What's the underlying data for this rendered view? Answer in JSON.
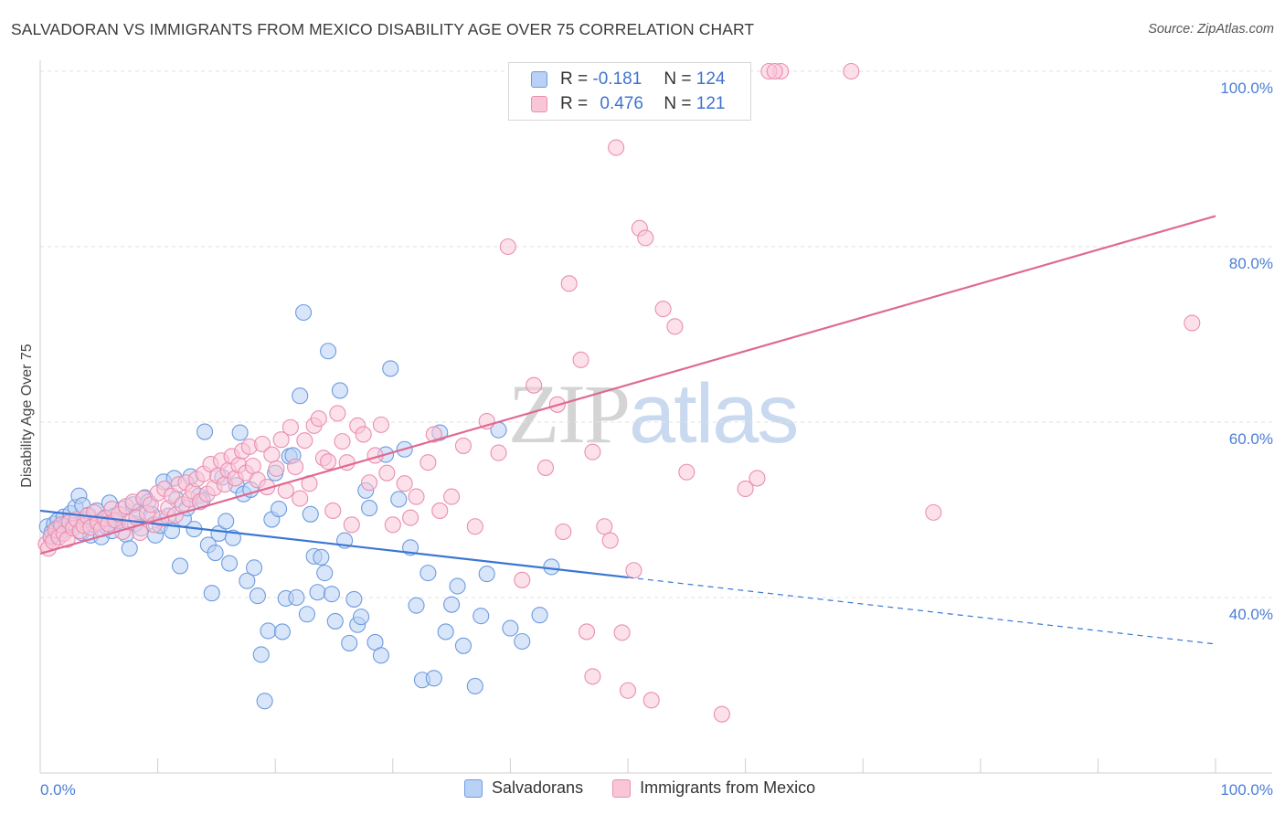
{
  "title": "SALVADORAN VS IMMIGRANTS FROM MEXICO DISABILITY AGE OVER 75 CORRELATION CHART",
  "source": "Source: ZipAtlas.com",
  "watermark": {
    "zip": "ZIP",
    "atlas": "atlas"
  },
  "legend": {
    "r_label": "R =",
    "n_label": "N =",
    "rows": [
      {
        "r": "-0.181",
        "n": "124",
        "fill": "#b9d1f4",
        "stroke": "#6d9be0"
      },
      {
        "r": "0.476",
        "n": "121",
        "fill": "#f9c6d8",
        "stroke": "#ea8fb0"
      }
    ]
  },
  "bottom_legend": [
    {
      "label": "Salvadorans",
      "fill": "#b9d1f4",
      "stroke": "#6d9be0"
    },
    {
      "label": "Immigrants from Mexico",
      "fill": "#f9c6d8",
      "stroke": "#ea8fb0"
    }
  ],
  "chart_data": {
    "type": "scatter",
    "title": "SALVADORAN VS IMMIGRANTS FROM MEXICO DISABILITY AGE OVER 75 CORRELATION CHART",
    "xlabel": "",
    "ylabel": "Disability Age Over 75",
    "xlim": [
      0,
      100
    ],
    "ylim": [
      18,
      102
    ],
    "x_tick_labels": [
      "0.0%",
      "100.0%"
    ],
    "y_tick_values": [
      40,
      60,
      80,
      100
    ],
    "y_tick_labels": [
      "40.0%",
      "60.0%",
      "80.0%",
      "100.0%"
    ],
    "grid": "horizontal dashed",
    "legend_position": "top-center",
    "series": [
      {
        "name": "Salvadorans",
        "color": "#6d9be0",
        "fill": "#b9d1f4",
        "trend": {
          "x": [
            0,
            50
          ],
          "y": [
            49.9,
            42.3
          ],
          "dashed_to": {
            "x": 100,
            "y": 34.7
          },
          "color": "#3a76d4"
        },
        "points": [
          [
            0.6,
            48.1
          ],
          [
            0.9,
            46.8
          ],
          [
            1.0,
            47.5
          ],
          [
            1.2,
            48.4
          ],
          [
            1.4,
            47.9
          ],
          [
            1.5,
            48.8
          ],
          [
            1.6,
            47.3
          ],
          [
            1.8,
            48.0
          ],
          [
            2.0,
            49.2
          ],
          [
            2.1,
            47.7
          ],
          [
            2.3,
            48.5
          ],
          [
            2.6,
            49.6
          ],
          [
            2.8,
            48.2
          ],
          [
            3.0,
            50.3
          ],
          [
            3.3,
            51.6
          ],
          [
            3.5,
            47.4
          ],
          [
            3.6,
            50.5
          ],
          [
            3.8,
            48.9
          ],
          [
            4.1,
            49.4
          ],
          [
            4.3,
            47.1
          ],
          [
            4.6,
            48.3
          ],
          [
            4.8,
            49.9
          ],
          [
            5.0,
            48.6
          ],
          [
            5.2,
            46.9
          ],
          [
            5.5,
            49.1
          ],
          [
            5.7,
            48.0
          ],
          [
            5.9,
            50.8
          ],
          [
            6.1,
            47.6
          ],
          [
            6.3,
            49.3
          ],
          [
            6.6,
            48.7
          ],
          [
            7.0,
            50.1
          ],
          [
            7.3,
            47.2
          ],
          [
            7.6,
            45.6
          ],
          [
            7.9,
            50.6
          ],
          [
            8.1,
            48.4
          ],
          [
            8.4,
            49.8
          ],
          [
            8.6,
            47.9
          ],
          [
            8.9,
            51.4
          ],
          [
            9.2,
            50.9
          ],
          [
            9.5,
            49.5
          ],
          [
            9.8,
            47.1
          ],
          [
            10.2,
            48.2
          ],
          [
            10.5,
            53.2
          ],
          [
            10.9,
            49.3
          ],
          [
            11.2,
            47.6
          ],
          [
            11.4,
            53.6
          ],
          [
            11.6,
            51.2
          ],
          [
            11.9,
            43.6
          ],
          [
            12.2,
            49.0
          ],
          [
            12.5,
            50.2
          ],
          [
            12.8,
            53.8
          ],
          [
            13.1,
            47.8
          ],
          [
            13.5,
            51.6
          ],
          [
            13.8,
            51.1
          ],
          [
            14.0,
            58.9
          ],
          [
            14.3,
            46.0
          ],
          [
            14.6,
            40.5
          ],
          [
            14.9,
            45.1
          ],
          [
            15.2,
            47.3
          ],
          [
            15.5,
            53.7
          ],
          [
            15.8,
            48.7
          ],
          [
            16.1,
            43.9
          ],
          [
            16.4,
            46.8
          ],
          [
            16.7,
            52.8
          ],
          [
            17.0,
            58.8
          ],
          [
            17.3,
            51.8
          ],
          [
            17.6,
            41.9
          ],
          [
            17.9,
            52.3
          ],
          [
            18.2,
            43.4
          ],
          [
            18.5,
            40.2
          ],
          [
            18.8,
            33.5
          ],
          [
            19.1,
            28.2
          ],
          [
            19.4,
            36.2
          ],
          [
            19.7,
            48.9
          ],
          [
            20.0,
            54.2
          ],
          [
            20.3,
            50.1
          ],
          [
            20.6,
            36.1
          ],
          [
            20.9,
            39.9
          ],
          [
            21.2,
            56.1
          ],
          [
            21.5,
            56.2
          ],
          [
            21.8,
            40.0
          ],
          [
            22.1,
            63.0
          ],
          [
            22.4,
            72.5
          ],
          [
            22.7,
            38.1
          ],
          [
            23.0,
            49.5
          ],
          [
            23.3,
            44.7
          ],
          [
            23.6,
            40.6
          ],
          [
            23.9,
            44.6
          ],
          [
            24.2,
            42.8
          ],
          [
            24.5,
            68.1
          ],
          [
            24.8,
            40.4
          ],
          [
            25.1,
            37.3
          ],
          [
            25.5,
            63.6
          ],
          [
            25.9,
            46.5
          ],
          [
            26.3,
            34.8
          ],
          [
            26.7,
            39.8
          ],
          [
            27.0,
            36.9
          ],
          [
            27.3,
            37.8
          ],
          [
            27.7,
            52.2
          ],
          [
            28.0,
            50.2
          ],
          [
            28.5,
            34.9
          ],
          [
            29.0,
            33.4
          ],
          [
            29.4,
            56.3
          ],
          [
            29.8,
            66.1
          ],
          [
            30.5,
            51.2
          ],
          [
            31.0,
            56.9
          ],
          [
            31.5,
            45.7
          ],
          [
            32.0,
            39.1
          ],
          [
            32.5,
            30.6
          ],
          [
            33.0,
            42.8
          ],
          [
            33.5,
            30.8
          ],
          [
            34.0,
            58.8
          ],
          [
            34.5,
            36.1
          ],
          [
            35.0,
            39.2
          ],
          [
            35.5,
            41.3
          ],
          [
            36.0,
            34.5
          ],
          [
            37.0,
            29.9
          ],
          [
            37.5,
            37.9
          ],
          [
            38.0,
            42.7
          ],
          [
            39.0,
            59.1
          ],
          [
            40.0,
            36.5
          ],
          [
            41.0,
            35.0
          ],
          [
            42.5,
            38.0
          ],
          [
            43.5,
            43.5
          ]
        ]
      },
      {
        "name": "Immigrants from Mexico",
        "color": "#ea8fb0",
        "fill": "#f9c6d8",
        "trend": {
          "x": [
            0,
            100
          ],
          "y": [
            45.0,
            83.5
          ],
          "color": "#e06893"
        },
        "points": [
          [
            0.5,
            46.1
          ],
          [
            0.7,
            45.6
          ],
          [
            0.9,
            47.0
          ],
          [
            1.1,
            46.4
          ],
          [
            1.3,
            47.7
          ],
          [
            1.6,
            46.9
          ],
          [
            1.8,
            48.3
          ],
          [
            2.0,
            47.3
          ],
          [
            2.3,
            46.6
          ],
          [
            2.5,
            48.6
          ],
          [
            2.8,
            47.9
          ],
          [
            3.1,
            48.9
          ],
          [
            3.4,
            47.6
          ],
          [
            3.7,
            48.2
          ],
          [
            4.0,
            49.3
          ],
          [
            4.3,
            48.0
          ],
          [
            4.6,
            49.7
          ],
          [
            4.9,
            48.5
          ],
          [
            5.2,
            47.8
          ],
          [
            5.5,
            49.0
          ],
          [
            5.8,
            48.4
          ],
          [
            6.1,
            50.1
          ],
          [
            6.4,
            48.8
          ],
          [
            6.7,
            49.5
          ],
          [
            7.0,
            47.5
          ],
          [
            7.3,
            50.4
          ],
          [
            7.6,
            48.6
          ],
          [
            7.9,
            50.9
          ],
          [
            8.2,
            49.1
          ],
          [
            8.5,
            47.4
          ],
          [
            8.8,
            51.3
          ],
          [
            9.1,
            49.6
          ],
          [
            9.4,
            50.6
          ],
          [
            9.7,
            48.3
          ],
          [
            10.0,
            51.9
          ],
          [
            10.3,
            49.0
          ],
          [
            10.6,
            52.4
          ],
          [
            10.9,
            50.2
          ],
          [
            11.2,
            51.6
          ],
          [
            11.5,
            49.4
          ],
          [
            11.8,
            52.9
          ],
          [
            12.1,
            50.6
          ],
          [
            12.4,
            53.1
          ],
          [
            12.7,
            51.2
          ],
          [
            13.0,
            52.1
          ],
          [
            13.3,
            53.5
          ],
          [
            13.6,
            50.9
          ],
          [
            13.9,
            54.1
          ],
          [
            14.2,
            51.8
          ],
          [
            14.5,
            55.2
          ],
          [
            14.8,
            52.5
          ],
          [
            15.1,
            53.9
          ],
          [
            15.4,
            55.6
          ],
          [
            15.7,
            52.9
          ],
          [
            16.0,
            54.5
          ],
          [
            16.3,
            56.1
          ],
          [
            16.6,
            53.6
          ],
          [
            16.9,
            55.1
          ],
          [
            17.2,
            56.7
          ],
          [
            17.5,
            54.2
          ],
          [
            17.8,
            57.2
          ],
          [
            18.1,
            55.0
          ],
          [
            18.5,
            53.4
          ],
          [
            18.9,
            57.5
          ],
          [
            19.3,
            52.6
          ],
          [
            19.7,
            56.3
          ],
          [
            20.1,
            54.7
          ],
          [
            20.5,
            58.0
          ],
          [
            20.9,
            52.2
          ],
          [
            21.3,
            59.4
          ],
          [
            21.7,
            54.9
          ],
          [
            22.1,
            51.3
          ],
          [
            22.5,
            57.9
          ],
          [
            22.9,
            53.0
          ],
          [
            23.3,
            59.6
          ],
          [
            23.7,
            60.4
          ],
          [
            24.1,
            55.9
          ],
          [
            24.5,
            55.5
          ],
          [
            24.9,
            49.9
          ],
          [
            25.3,
            61.0
          ],
          [
            25.7,
            57.8
          ],
          [
            26.1,
            55.4
          ],
          [
            26.5,
            48.3
          ],
          [
            27.0,
            59.6
          ],
          [
            27.5,
            58.6
          ],
          [
            28.0,
            53.1
          ],
          [
            28.5,
            56.2
          ],
          [
            29.0,
            59.7
          ],
          [
            29.5,
            54.2
          ],
          [
            30.0,
            48.3
          ],
          [
            31.0,
            53.0
          ],
          [
            31.5,
            49.1
          ],
          [
            32.0,
            51.5
          ],
          [
            33.0,
            55.4
          ],
          [
            33.5,
            58.6
          ],
          [
            34.0,
            49.9
          ],
          [
            35.0,
            51.5
          ],
          [
            36.0,
            57.3
          ],
          [
            37.0,
            48.1
          ],
          [
            38.0,
            60.1
          ],
          [
            39.0,
            56.5
          ],
          [
            39.8,
            80.0
          ],
          [
            41.0,
            42.0
          ],
          [
            42.0,
            64.2
          ],
          [
            43.0,
            54.8
          ],
          [
            44.0,
            62.0
          ],
          [
            44.5,
            47.5
          ],
          [
            45.0,
            75.8
          ],
          [
            46.0,
            67.1
          ],
          [
            47.0,
            56.6
          ],
          [
            48.0,
            48.1
          ],
          [
            49.0,
            91.3
          ],
          [
            50.0,
            29.4
          ],
          [
            51.0,
            82.1
          ],
          [
            53.0,
            72.9
          ],
          [
            54.0,
            70.9
          ],
          [
            58.0,
            26.7
          ],
          [
            61.0,
            53.6
          ],
          [
            63.0,
            100.0
          ],
          [
            69.0,
            100.0
          ],
          [
            98.0,
            71.3
          ]
        ],
        "extra_points": [
          [
            51.5,
            81.0
          ],
          [
            53.5,
            96.0
          ],
          [
            54.5,
            96.2
          ],
          [
            62.0,
            100.0
          ],
          [
            62.5,
            100.0
          ],
          [
            46.5,
            36.1
          ],
          [
            49.5,
            36.0
          ],
          [
            52.0,
            28.3
          ],
          [
            47.0,
            31.0
          ],
          [
            48.5,
            46.5
          ],
          [
            50.5,
            43.1
          ],
          [
            55.0,
            54.3
          ],
          [
            60.0,
            52.4
          ],
          [
            76.0,
            49.7
          ]
        ]
      }
    ]
  }
}
